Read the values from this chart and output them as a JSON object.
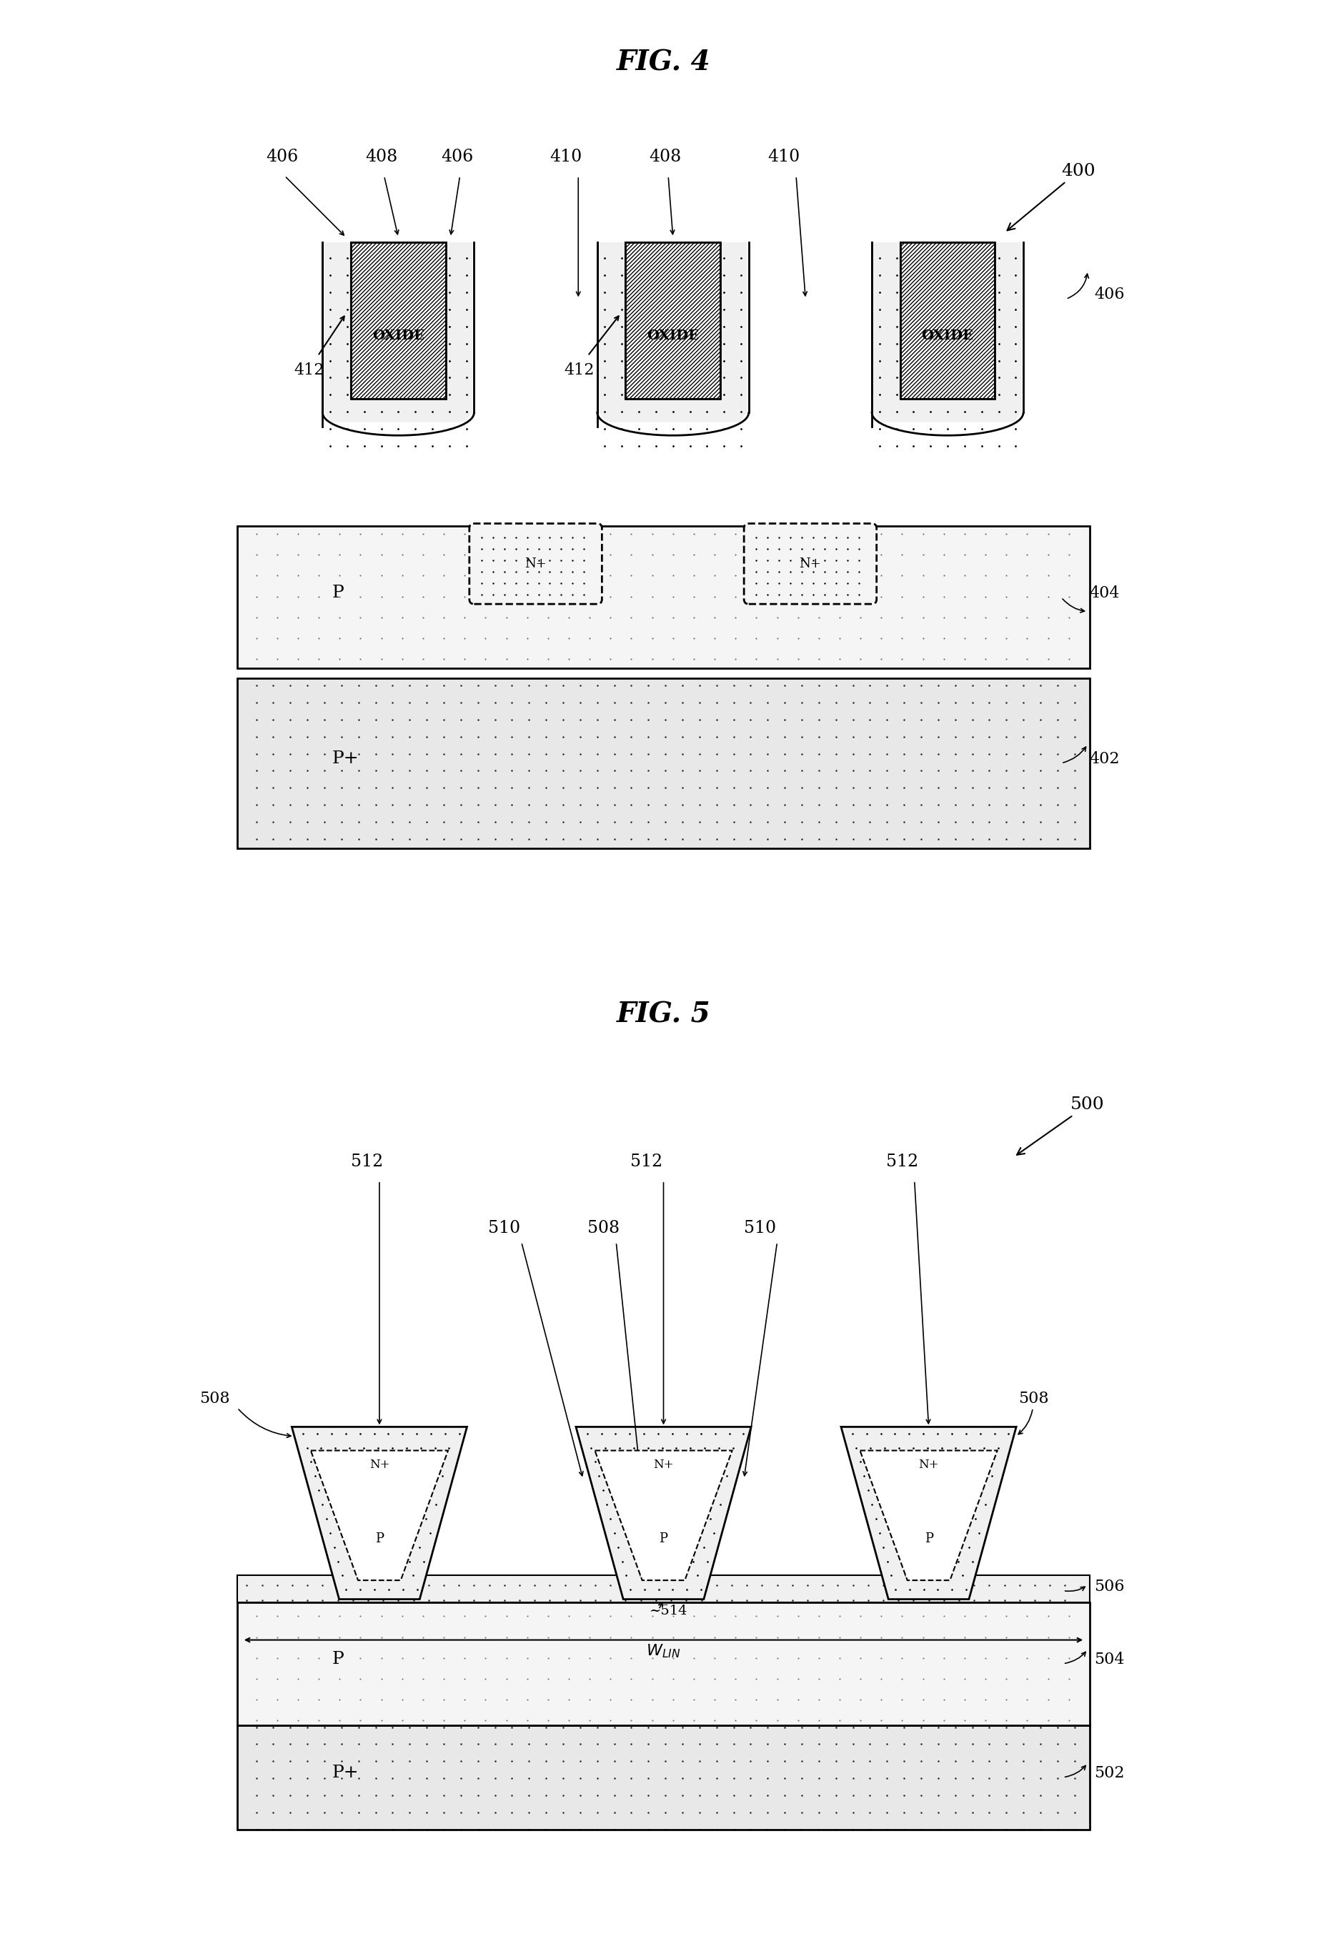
{
  "fig_width": 18.57,
  "fig_height": 27.13,
  "bg_color": "#ffffff",
  "title1": "FIG. 4",
  "title2": "FIG. 5",
  "fig1_labels": {
    "406_left": "406",
    "408_left": "408",
    "406_mid": "406",
    "410_left": "410",
    "408_right": "408",
    "410_right": "410",
    "400": "400",
    "412_left": "412",
    "P_label": "P",
    "412_right": "412",
    "404": "404",
    "402": "402",
    "OXIDE1": "OXIDE",
    "OXIDE2": "OXIDE",
    "N1": "N+",
    "N2": "N+"
  },
  "fig2_labels": {
    "512a": "512",
    "512b": "512",
    "512c": "512",
    "510a": "510",
    "508a": "508",
    "510b": "510",
    "508_left": "508",
    "508_right": "508",
    "514": "514",
    "500": "500",
    "N1": "N+",
    "N2": "N+",
    "N3": "N+",
    "P1": "P",
    "P2": "P",
    "P3": "P",
    "506": "506",
    "504": "504",
    "502": "502",
    "WLIN": "Wₗᴵₙ",
    "P_layer": "P",
    "Pplus_layer": "P+"
  }
}
